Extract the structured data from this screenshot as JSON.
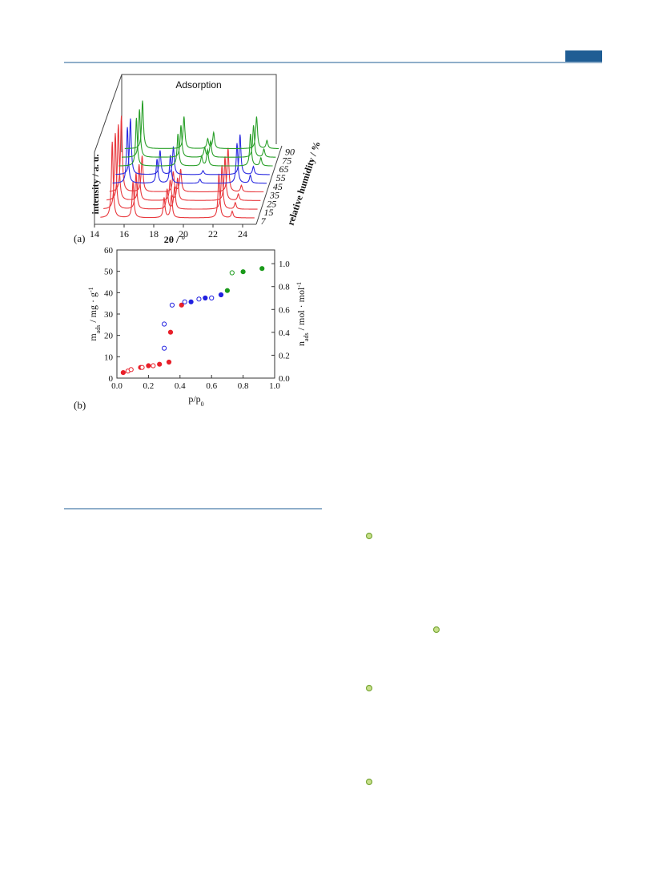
{
  "figure": {
    "panel_a": {
      "type": "waterfall",
      "label": "(a)",
      "title": "Adsorption",
      "ylabel": "intensity / a. u.",
      "xlabel": "2θ / °",
      "zlabel": "relative humidity / %",
      "xlim": [
        14,
        25
      ],
      "xticks": [
        14,
        16,
        18,
        20,
        22,
        24
      ],
      "series": [
        {
          "name": "7",
          "color": "#e8383d",
          "peaks": [
            15.2,
            16.6,
            18.7,
            19.2,
            22.4,
            23.3
          ],
          "heights": [
            95,
            45,
            25,
            28,
            55,
            8
          ]
        },
        {
          "name": "15",
          "color": "#e8383d",
          "peaks": [
            15.2,
            16.6,
            18.7,
            19.2,
            22.4,
            23.3
          ],
          "heights": [
            95,
            45,
            25,
            28,
            55,
            8
          ]
        },
        {
          "name": "25",
          "color": "#e8383d",
          "peaks": [
            15.2,
            16.6,
            18.7,
            19.2,
            22.4,
            23.3
          ],
          "heights": [
            95,
            45,
            25,
            28,
            55,
            8
          ]
        },
        {
          "name": "35",
          "color": "#e8383d",
          "peaks": [
            15.2,
            16.6,
            18.7,
            19.2,
            22.4,
            23.3
          ],
          "heights": [
            95,
            45,
            25,
            28,
            55,
            8
          ]
        },
        {
          "name": "45",
          "color": "#2a2ae0",
          "peaks": [
            15.4,
            17.4,
            18.3,
            20.3,
            22.8,
            23.7
          ],
          "heights": [
            70,
            30,
            35,
            5,
            50,
            10
          ]
        },
        {
          "name": "55",
          "color": "#2a2ae0",
          "peaks": [
            15.4,
            17.4,
            18.3,
            20.3,
            22.8,
            23.7
          ],
          "heights": [
            70,
            30,
            35,
            5,
            50,
            10
          ]
        },
        {
          "name": "65",
          "color": "#2aa02a",
          "peaks": [
            15.6,
            18.4,
            20.0,
            20.4,
            23.3,
            24.0
          ],
          "heights": [
            60,
            40,
            12,
            20,
            40,
            10
          ]
        },
        {
          "name": "75",
          "color": "#2aa02a",
          "peaks": [
            15.6,
            18.4,
            20.0,
            20.4,
            23.3,
            24.0
          ],
          "heights": [
            60,
            40,
            12,
            20,
            40,
            10
          ]
        },
        {
          "name": "90",
          "color": "#2aa02a",
          "peaks": [
            15.6,
            18.4,
            20.0,
            20.4,
            23.3,
            24.0
          ],
          "heights": [
            60,
            40,
            12,
            20,
            40,
            10
          ]
        }
      ]
    },
    "panel_b": {
      "type": "scatter",
      "label": "(b)",
      "xlabel": [
        "p/p",
        "0"
      ],
      "ylabel": [
        "m",
        "ads",
        " / mg · g",
        "-1"
      ],
      "y2label": [
        "n",
        "ads",
        " / mol · mol",
        "-1"
      ],
      "xlim": [
        0,
        1
      ],
      "xticks": [
        {
          "value": 0,
          "label": "0.0"
        },
        {
          "value": 0.2,
          "label": "0.2"
        },
        {
          "value": 0.4,
          "label": "0.4"
        },
        {
          "value": 0.6,
          "label": "0.6"
        },
        {
          "value": 0.8,
          "label": "0.8"
        },
        {
          "value": 1,
          "label": "1.0"
        }
      ],
      "ylim": [
        0,
        60
      ],
      "yticks": [
        0,
        10,
        20,
        30,
        40,
        50,
        60
      ],
      "y2lim": [
        0,
        1.12
      ],
      "y2ticks": [
        {
          "value": 0,
          "label": "0.0"
        },
        {
          "value": 0.2,
          "label": "0.2"
        },
        {
          "value": 0.4,
          "label": "0.4"
        },
        {
          "value": 0.6,
          "label": "0.6"
        },
        {
          "value": 0.8,
          "label": "0.8"
        },
        {
          "value": 1,
          "label": "1.0"
        }
      ],
      "series": [
        {
          "color": "#e8202a",
          "filled": true,
          "x": [
            0.04,
            0.15,
            0.2,
            0.27,
            0.33,
            0.34,
            0.41
          ],
          "values": [
            2.6,
            5,
            5.8,
            6.5,
            7.5,
            21.5,
            34.2
          ]
        },
        {
          "color": "#e8202a",
          "filled": false,
          "x": [
            0.07,
            0.09,
            0.16,
            0.23
          ],
          "values": [
            3.3,
            4,
            5,
            5.8
          ]
        },
        {
          "color": "#2020e0",
          "filled": false,
          "x": [
            0.3,
            0.3,
            0.35,
            0.43,
            0.52,
            0.6
          ],
          "values": [
            14,
            25.3,
            34.2,
            35.7,
            37,
            37.5
          ]
        },
        {
          "color": "#2020e0",
          "filled": true,
          "x": [
            0.47,
            0.56,
            0.66
          ],
          "values": [
            35.7,
            37.5,
            39
          ]
        },
        {
          "color": "#1a9a1a",
          "filled": true,
          "x": [
            0.7,
            0.8,
            0.92
          ],
          "values": [
            41,
            49.8,
            51.3
          ]
        },
        {
          "color": "#1a9a1a",
          "filled": false,
          "x": [
            0.73
          ],
          "values": [
            49.3
          ]
        }
      ]
    }
  }
}
